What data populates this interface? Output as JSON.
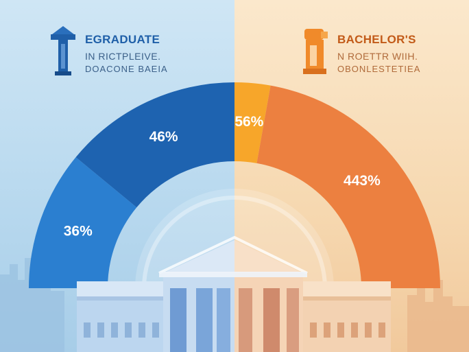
{
  "legend": {
    "left": {
      "title": "EGRADUATE",
      "line1": "IN RICTPLEIVE.",
      "line2": "DOACONE BAEIA",
      "icon": "graduation-tower-icon",
      "color": "#1f5fa8"
    },
    "right": {
      "title": "BACHELOR'S",
      "line1": "N ROETTR WIIH.",
      "line2": "OBONLESTETIEA",
      "icon": "bachelor-tower-icon",
      "color": "#c25a18"
    }
  },
  "chart_data": {
    "type": "pie",
    "style": "semi-donut",
    "slices": [
      {
        "label": "36%",
        "value": 36,
        "side": "left",
        "color": "#2b7fd0"
      },
      {
        "label": "46%",
        "value": 46,
        "side": "left",
        "color": "#1e63b0"
      },
      {
        "label": "56%",
        "value": 56,
        "side": "right",
        "color": "#f7a62a"
      },
      {
        "label": "443%",
        "value": 443,
        "side": "right",
        "color": "#ec8040"
      }
    ]
  }
}
